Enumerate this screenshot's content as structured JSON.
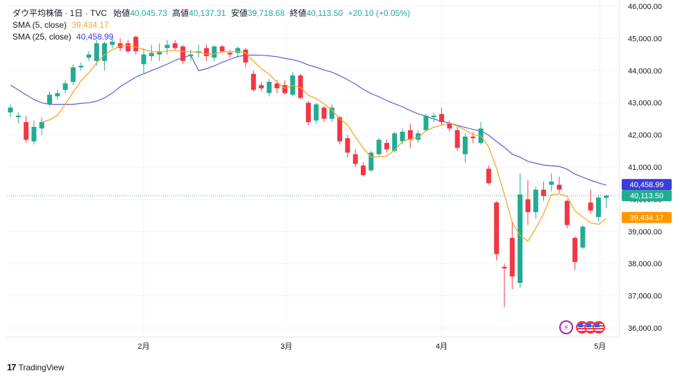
{
  "header": {
    "title": "ダウ平均株価 · 1日 · TVC",
    "open_label": "始値",
    "open": "40,045.73",
    "high_label": "高値",
    "high": "40,137.31",
    "low_label": "安値",
    "low": "39,718.68",
    "close_label": "終値",
    "close": "40,113.50",
    "change": "+20.10 (+0.05%)"
  },
  "indicators": {
    "sma5_label": "SMA (5, close)",
    "sma5_value": "39,434.17",
    "sma25_label": "SMA (25, close)",
    "sma25_value": "40,458.99"
  },
  "price_badges": {
    "sma25": "40,458.99",
    "last": "40,113.50",
    "sma5": "39,434.17"
  },
  "branding": {
    "name": "TradingView"
  },
  "colors": {
    "up": "#22ab94",
    "down": "#f23645",
    "sma5": "#f5a623",
    "sma25": "#5b5bd6",
    "grid": "#f0f3fa"
  },
  "chart_data": {
    "type": "candlestick",
    "y_ticks": [
      "36,000.00",
      "37,000.00",
      "38,000.00",
      "39,000.00",
      "40,000.00",
      "41,000.00",
      "42,000.00",
      "43,000.00",
      "44,000.00",
      "45,000.00",
      "46,000.00"
    ],
    "x_ticks": [
      "2月",
      "3月",
      "4月",
      "5月"
    ],
    "ylim": [
      35700,
      46050
    ],
    "last_price": 40113.5,
    "candles": [
      {
        "o": 42700,
        "h": 42950,
        "l": 42550,
        "c": 42850
      },
      {
        "o": 42550,
        "h": 42700,
        "l": 42350,
        "c": 42600
      },
      {
        "o": 42400,
        "h": 42600,
        "l": 41750,
        "c": 41850
      },
      {
        "o": 41800,
        "h": 42450,
        "l": 41700,
        "c": 42250
      },
      {
        "o": 42200,
        "h": 42550,
        "l": 42000,
        "c": 42400
      },
      {
        "o": 42950,
        "h": 43350,
        "l": 42900,
        "c": 43250
      },
      {
        "o": 43200,
        "h": 43400,
        "l": 43100,
        "c": 43300
      },
      {
        "o": 43400,
        "h": 43700,
        "l": 43300,
        "c": 43600
      },
      {
        "o": 43650,
        "h": 44200,
        "l": 43550,
        "c": 44100
      },
      {
        "o": 44100,
        "h": 44250,
        "l": 44000,
        "c": 44150
      },
      {
        "o": 44400,
        "h": 44600,
        "l": 44300,
        "c": 44500
      },
      {
        "o": 44300,
        "h": 44950,
        "l": 44150,
        "c": 44850
      },
      {
        "o": 44300,
        "h": 44900,
        "l": 44000,
        "c": 44850
      },
      {
        "o": 44800,
        "h": 45000,
        "l": 44700,
        "c": 44900
      },
      {
        "o": 44850,
        "h": 45000,
        "l": 44600,
        "c": 44700
      },
      {
        "o": 44850,
        "h": 44950,
        "l": 44550,
        "c": 44600
      },
      {
        "o": 45050,
        "h": 45100,
        "l": 44500,
        "c": 44600
      },
      {
        "o": 44200,
        "h": 44700,
        "l": 43900,
        "c": 44500
      },
      {
        "o": 44450,
        "h": 44800,
        "l": 44300,
        "c": 44550
      },
      {
        "o": 44500,
        "h": 44850,
        "l": 44300,
        "c": 44600
      },
      {
        "o": 44700,
        "h": 44950,
        "l": 44500,
        "c": 44800
      },
      {
        "o": 44850,
        "h": 44950,
        "l": 44650,
        "c": 44700
      },
      {
        "o": 44750,
        "h": 44800,
        "l": 44200,
        "c": 44300
      },
      {
        "o": 44450,
        "h": 44650,
        "l": 44300,
        "c": 44500
      },
      {
        "o": 44550,
        "h": 44800,
        "l": 44400,
        "c": 44600
      },
      {
        "o": 44700,
        "h": 44800,
        "l": 44300,
        "c": 44450
      },
      {
        "o": 44400,
        "h": 44800,
        "l": 44300,
        "c": 44750
      },
      {
        "o": 44750,
        "h": 44800,
        "l": 44550,
        "c": 44600
      },
      {
        "o": 44550,
        "h": 44650,
        "l": 44400,
        "c": 44500
      },
      {
        "o": 44550,
        "h": 44750,
        "l": 44400,
        "c": 44700
      },
      {
        "o": 44650,
        "h": 44700,
        "l": 44100,
        "c": 44250
      },
      {
        "o": 43900,
        "h": 44000,
        "l": 43350,
        "c": 43400
      },
      {
        "o": 43550,
        "h": 43650,
        "l": 43350,
        "c": 43450
      },
      {
        "o": 43300,
        "h": 43750,
        "l": 43200,
        "c": 43650
      },
      {
        "o": 43600,
        "h": 43700,
        "l": 43300,
        "c": 43450
      },
      {
        "o": 43550,
        "h": 43700,
        "l": 43250,
        "c": 43300
      },
      {
        "o": 43250,
        "h": 43950,
        "l": 43200,
        "c": 43850
      },
      {
        "o": 43850,
        "h": 43900,
        "l": 43100,
        "c": 43150
      },
      {
        "o": 43000,
        "h": 43050,
        "l": 42300,
        "c": 42400
      },
      {
        "o": 42450,
        "h": 43000,
        "l": 42350,
        "c": 42950
      },
      {
        "o": 42850,
        "h": 42900,
        "l": 42400,
        "c": 42500
      },
      {
        "o": 42500,
        "h": 42950,
        "l": 42400,
        "c": 42850
      },
      {
        "o": 42550,
        "h": 42600,
        "l": 41700,
        "c": 41800
      },
      {
        "o": 41900,
        "h": 42000,
        "l": 41300,
        "c": 41450
      },
      {
        "o": 41400,
        "h": 41550,
        "l": 41000,
        "c": 41100
      },
      {
        "o": 41050,
        "h": 41150,
        "l": 40700,
        "c": 40750
      },
      {
        "o": 40900,
        "h": 41500,
        "l": 40850,
        "c": 41450
      },
      {
        "o": 41400,
        "h": 41900,
        "l": 41350,
        "c": 41850
      },
      {
        "o": 41750,
        "h": 41850,
        "l": 41450,
        "c": 41550
      },
      {
        "o": 41500,
        "h": 42100,
        "l": 41450,
        "c": 42050
      },
      {
        "o": 41800,
        "h": 42200,
        "l": 41700,
        "c": 42100
      },
      {
        "o": 42150,
        "h": 42350,
        "l": 41600,
        "c": 41850
      },
      {
        "o": 41850,
        "h": 42150,
        "l": 41750,
        "c": 42050
      },
      {
        "o": 42150,
        "h": 42650,
        "l": 42100,
        "c": 42600
      },
      {
        "o": 42550,
        "h": 42700,
        "l": 42400,
        "c": 42600
      },
      {
        "o": 42650,
        "h": 42850,
        "l": 42300,
        "c": 42400
      },
      {
        "o": 42350,
        "h": 42450,
        "l": 42100,
        "c": 42200
      },
      {
        "o": 42150,
        "h": 42250,
        "l": 41500,
        "c": 41600
      },
      {
        "o": 41400,
        "h": 42050,
        "l": 41150,
        "c": 41950
      },
      {
        "o": 41950,
        "h": 42100,
        "l": 41750,
        "c": 41900
      },
      {
        "o": 41750,
        "h": 42400,
        "l": 41700,
        "c": 42200
      },
      {
        "o": 40950,
        "h": 41050,
        "l": 40450,
        "c": 40500
      },
      {
        "o": 39900,
        "h": 39950,
        "l": 38100,
        "c": 38300
      },
      {
        "o": 37900,
        "h": 38000,
        "l": 36650,
        "c": 37850
      },
      {
        "o": 38800,
        "h": 39300,
        "l": 37200,
        "c": 37600
      },
      {
        "o": 37400,
        "h": 40800,
        "l": 37250,
        "c": 40150
      },
      {
        "o": 40000,
        "h": 40600,
        "l": 39200,
        "c": 39600
      },
      {
        "o": 39600,
        "h": 40400,
        "l": 39400,
        "c": 40300
      },
      {
        "o": 40300,
        "h": 40550,
        "l": 39950,
        "c": 40100
      },
      {
        "o": 40450,
        "h": 40800,
        "l": 40250,
        "c": 40550
      },
      {
        "o": 40450,
        "h": 40700,
        "l": 40200,
        "c": 40300
      },
      {
        "o": 39950,
        "h": 40000,
        "l": 39100,
        "c": 39200
      },
      {
        "o": 38800,
        "h": 38850,
        "l": 37800,
        "c": 38050
      },
      {
        "o": 38500,
        "h": 39200,
        "l": 38450,
        "c": 39150
      },
      {
        "o": 39900,
        "h": 40300,
        "l": 39550,
        "c": 39650
      },
      {
        "o": 39450,
        "h": 40100,
        "l": 39300,
        "c": 40050
      },
      {
        "o": 40045.73,
        "h": 40137.31,
        "l": 39718.68,
        "c": 40113.5
      }
    ]
  }
}
